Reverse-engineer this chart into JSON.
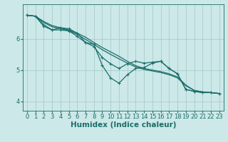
{
  "background_color": "#cce8e8",
  "grid_color": "#aacccc",
  "line_color": "#1a6e6a",
  "xlabel": "Humidex (Indice chaleur)",
  "xlabel_fontsize": 7.5,
  "tick_fontsize": 6,
  "xlim": [
    -0.5,
    23.5
  ],
  "ylim": [
    3.7,
    7.1
  ],
  "yticks": [
    4,
    5,
    6
  ],
  "xticks": [
    0,
    1,
    2,
    3,
    4,
    5,
    6,
    7,
    8,
    9,
    10,
    11,
    12,
    13,
    14,
    15,
    16,
    17,
    18,
    19,
    20,
    21,
    22,
    23
  ],
  "series": [
    {
      "x": [
        0,
        1,
        2,
        3,
        4,
        5,
        6,
        7,
        8,
        9,
        10,
        11,
        12,
        13,
        14,
        15,
        16,
        17,
        18,
        19,
        20,
        21,
        22,
        23
      ],
      "y": [
        6.75,
        6.72,
        6.55,
        6.42,
        6.35,
        6.28,
        6.18,
        6.05,
        5.88,
        5.72,
        5.58,
        5.44,
        5.28,
        5.14,
        5.05,
        5.0,
        4.95,
        4.88,
        4.78,
        4.52,
        4.35,
        4.3,
        4.28,
        4.25
      ],
      "marker": false,
      "linewidth": 0.9
    },
    {
      "x": [
        0,
        1,
        2,
        3,
        4,
        5,
        6,
        7,
        8,
        9,
        10,
        11,
        12,
        13,
        14,
        15,
        16,
        17,
        18,
        19,
        20,
        21,
        22,
        23
      ],
      "y": [
        6.75,
        6.72,
        6.52,
        6.38,
        6.32,
        6.26,
        6.14,
        5.98,
        5.82,
        5.65,
        5.5,
        5.36,
        5.22,
        5.1,
        5.02,
        4.97,
        4.92,
        4.85,
        4.75,
        4.5,
        4.35,
        4.3,
        4.28,
        4.25
      ],
      "marker": false,
      "linewidth": 0.9
    },
    {
      "x": [
        0,
        1,
        2,
        3,
        4,
        5,
        6,
        7,
        8,
        9,
        10,
        11,
        12,
        13,
        14,
        15,
        16,
        17,
        18,
        19,
        20,
        21,
        22,
        23
      ],
      "y": [
        6.75,
        6.72,
        6.45,
        6.28,
        6.28,
        6.25,
        6.08,
        5.88,
        5.75,
        5.4,
        5.2,
        5.05,
        5.2,
        5.28,
        5.22,
        5.25,
        5.28,
        5.05,
        4.88,
        4.38,
        4.32,
        4.28,
        4.28,
        4.25
      ],
      "marker": true,
      "linewidth": 0.9
    },
    {
      "x": [
        0,
        1,
        2,
        3,
        4,
        5,
        6,
        7,
        8,
        9,
        10,
        11,
        12,
        13,
        14,
        15,
        16,
        17,
        18,
        19,
        20,
        21,
        22,
        23
      ],
      "y": [
        6.75,
        6.72,
        6.4,
        6.28,
        6.35,
        6.32,
        6.18,
        5.88,
        5.82,
        5.15,
        4.75,
        4.58,
        4.85,
        5.05,
        5.08,
        5.22,
        5.28,
        5.05,
        4.88,
        4.38,
        4.32,
        4.28,
        4.28,
        4.25
      ],
      "marker": true,
      "linewidth": 0.9
    }
  ]
}
